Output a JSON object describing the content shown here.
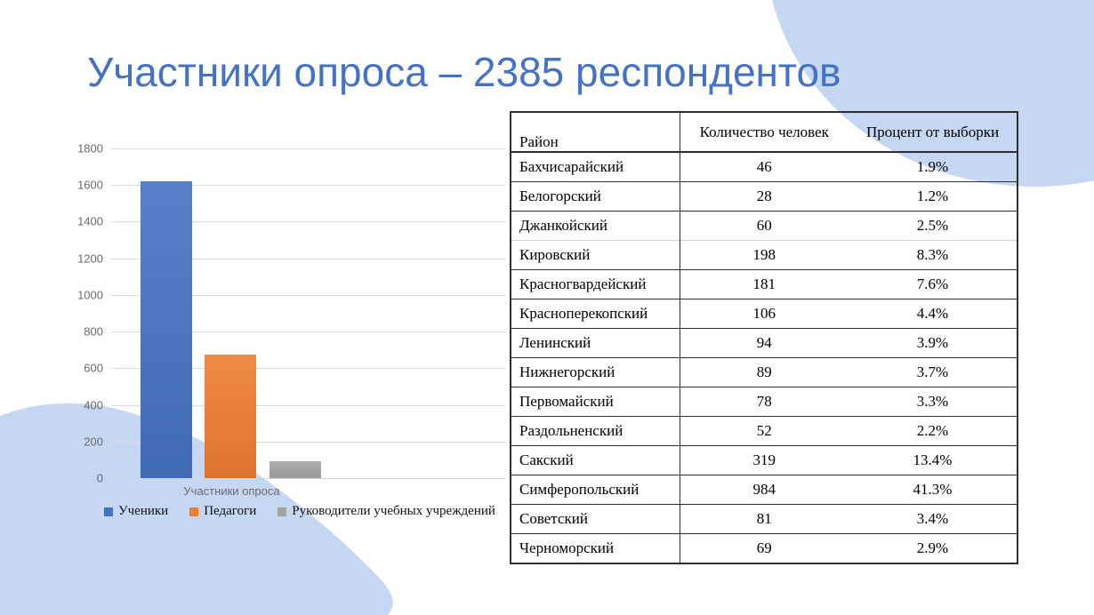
{
  "slide": {
    "title": "Участники опроса – 2385 респондентов",
    "accent_color": "#4472C4",
    "blob_color": "#C6D7F4",
    "background": "#FFFFFF"
  },
  "chart_data": [
    {
      "type": "bar",
      "title": "",
      "categories": [
        "Участники опроса"
      ],
      "series": [
        {
          "name": "Ученики",
          "values": [
            1620
          ],
          "color": "#4472C4"
        },
        {
          "name": "Педагоги",
          "values": [
            675
          ],
          "color": "#ED7D31"
        },
        {
          "name": "Руководители учебных учреждений",
          "values": [
            90
          ],
          "color": "#A5A5A5"
        }
      ],
      "xlabel": "Участники опроса",
      "ylabel": "",
      "ylim": [
        0,
        1800
      ],
      "yticks": [
        1800,
        1600,
        1400,
        1200,
        1000,
        800,
        600,
        400,
        200,
        0
      ],
      "grid": true,
      "legend_position": "bottom"
    },
    {
      "type": "table",
      "columns": [
        "Район",
        "Количество человек",
        "Процент от выборки"
      ],
      "rows": [
        [
          "Бахчисарайский",
          "46",
          "1.9%"
        ],
        [
          "Белогорский",
          "28",
          "1.2%"
        ],
        [
          "Джанкойский",
          "60",
          "2.5%"
        ],
        [
          "Кировский",
          "198",
          "8.3%"
        ],
        [
          "Красногвардейский",
          "181",
          "7.6%"
        ],
        [
          "Красноперекопский",
          "106",
          "4.4%"
        ],
        [
          "Ленинский",
          "94",
          "3.9%"
        ],
        [
          "Нижнегорский",
          "89",
          "3.7%"
        ],
        [
          "Первомайский",
          "78",
          "3.3%"
        ],
        [
          "Раздольненский",
          "52",
          "2.2%"
        ],
        [
          "Сакский",
          "319",
          "13.4%"
        ],
        [
          "Симферопольский",
          "984",
          "41.3%"
        ],
        [
          "Советский",
          "81",
          "3.4%"
        ],
        [
          "Черноморский",
          "69",
          "2.9%"
        ]
      ],
      "light_divider_before_row": "Кировский"
    }
  ]
}
